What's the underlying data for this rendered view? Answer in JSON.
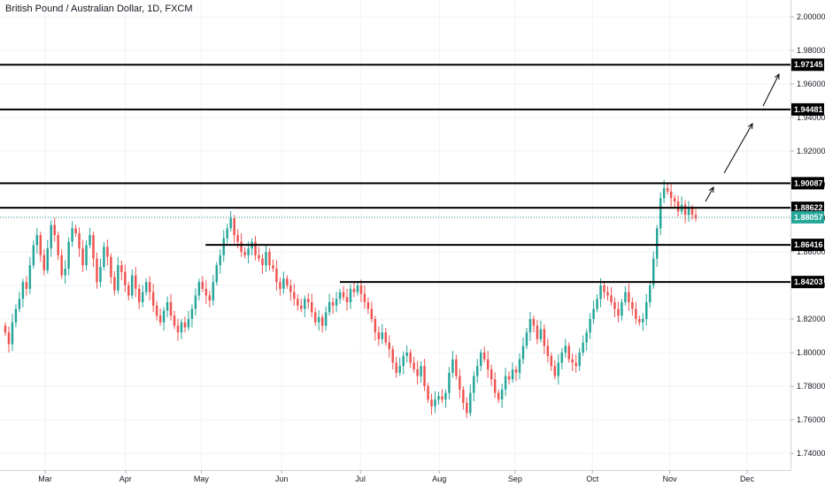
{
  "chart_data": {
    "type": "candlestick",
    "title": "British Pound / Australian Dollar, 1D, FXCM",
    "ylim": [
      1.73,
      2.01
    ],
    "y_ticks": [
      "2.00000",
      "1.98000",
      "1.96000",
      "1.94000",
      "1.92000",
      "1.90000",
      "1.88000",
      "1.86000",
      "1.84000",
      "1.82000",
      "1.80000",
      "1.78000",
      "1.76000",
      "1.74000"
    ],
    "x_ticks": [
      "Mar",
      "Apr",
      "May",
      "Jun",
      "Jul",
      "Aug",
      "Sep",
      "Oct",
      "Nov",
      "Dec"
    ],
    "current_price": {
      "value": "1.88057",
      "color": "#26a69a"
    },
    "levels": [
      {
        "value": "1.97145",
        "start_fraction": 0.0
      },
      {
        "value": "1.94481",
        "start_fraction": 0.0
      },
      {
        "value": "1.90087",
        "start_fraction": 0.0
      },
      {
        "value": "1.88622",
        "start_fraction": 0.0
      },
      {
        "value": "1.86416",
        "start_fraction": 0.26
      },
      {
        "value": "1.84203",
        "start_fraction": 0.43
      }
    ],
    "up_color": "#26a69a",
    "down_color": "#ef5350",
    "closes": [
      1.812,
      1.805,
      1.818,
      1.826,
      1.832,
      1.842,
      1.838,
      1.852,
      1.864,
      1.87,
      1.858,
      1.849,
      1.862,
      1.876,
      1.87,
      1.858,
      1.846,
      1.85,
      1.866,
      1.874,
      1.871,
      1.862,
      1.852,
      1.864,
      1.87,
      1.856,
      1.842,
      1.851,
      1.863,
      1.857,
      1.845,
      1.837,
      1.852,
      1.848,
      1.84,
      1.834,
      1.846,
      1.838,
      1.83,
      1.836,
      1.842,
      1.836,
      1.828,
      1.822,
      1.818,
      1.825,
      1.83,
      1.822,
      1.816,
      1.812,
      1.818,
      1.815,
      1.82,
      1.826,
      1.834,
      1.842,
      1.838,
      1.834,
      1.831,
      1.842,
      1.852,
      1.858,
      1.868,
      1.874,
      1.88,
      1.87,
      1.866,
      1.86,
      1.858,
      1.862,
      1.866,
      1.858,
      1.856,
      1.852,
      1.86,
      1.852,
      1.85,
      1.842,
      1.838,
      1.844,
      1.84,
      1.836,
      1.832,
      1.828,
      1.826,
      1.832,
      1.83,
      1.824,
      1.818,
      1.821,
      1.816,
      1.824,
      1.83,
      1.828,
      1.832,
      1.836,
      1.833,
      1.83,
      1.838,
      1.836,
      1.84,
      1.835,
      1.83,
      1.826,
      1.82,
      1.812,
      1.808,
      1.812,
      1.806,
      1.802,
      1.794,
      1.788,
      1.792,
      1.798,
      1.8,
      1.794,
      1.79,
      1.786,
      1.792,
      1.78,
      1.772,
      1.768,
      1.772,
      1.774,
      1.772,
      1.776,
      1.788,
      1.796,
      1.786,
      1.778,
      1.77,
      1.764,
      1.776,
      1.786,
      1.792,
      1.8,
      1.796,
      1.79,
      1.784,
      1.776,
      1.772,
      1.778,
      1.786,
      1.784,
      1.79,
      1.788,
      1.796,
      1.804,
      1.812,
      1.82,
      1.816,
      1.808,
      1.814,
      1.804,
      1.798,
      1.792,
      1.786,
      1.794,
      1.8,
      1.804,
      1.796,
      1.794,
      1.792,
      1.8,
      1.806,
      1.812,
      1.82,
      1.826,
      1.832,
      1.84,
      1.836,
      1.834,
      1.83,
      1.826,
      1.822,
      1.83,
      1.836,
      1.83,
      1.826,
      1.82,
      1.818,
      1.82,
      1.83,
      1.84,
      1.856,
      1.874,
      1.892,
      1.898,
      1.896,
      1.892,
      1.89,
      1.884,
      1.888,
      1.882,
      1.886,
      1.882,
      1.88
    ]
  }
}
